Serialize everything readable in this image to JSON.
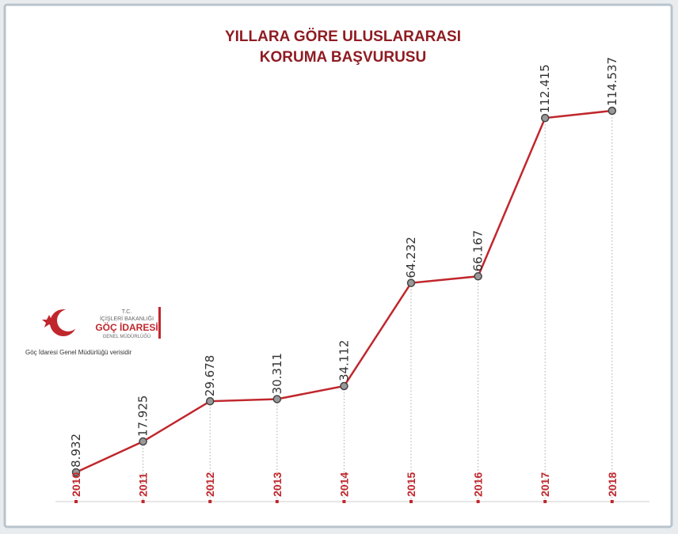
{
  "chart_data": {
    "type": "line",
    "title": [
      "YILLARA GÖRE ULUSLARARASI",
      "KORUMA BAŞVURUSU"
    ],
    "categories": [
      "2010",
      "2011",
      "2012",
      "2013",
      "2014",
      "2015",
      "2016",
      "2017",
      "2018"
    ],
    "values": [
      8932,
      17925,
      29678,
      30311,
      34112,
      64232,
      66167,
      112415,
      114537
    ],
    "value_labels": [
      "8.932",
      "17.925",
      "29.678",
      "30.311",
      "34.112",
      "64.232",
      "66.167",
      "112.415",
      "114.537"
    ],
    "color": "#c0272d",
    "logo": {
      "line1": "T.C.",
      "line2": "İÇİŞLERİ BAKANLIĞI",
      "line3": "GÖÇ İDARESİ",
      "line4": "GENEL MÜDÜRLÜĞÜ"
    },
    "source": "Göç İdaresi Genel Müdürlüğü verisidir"
  }
}
